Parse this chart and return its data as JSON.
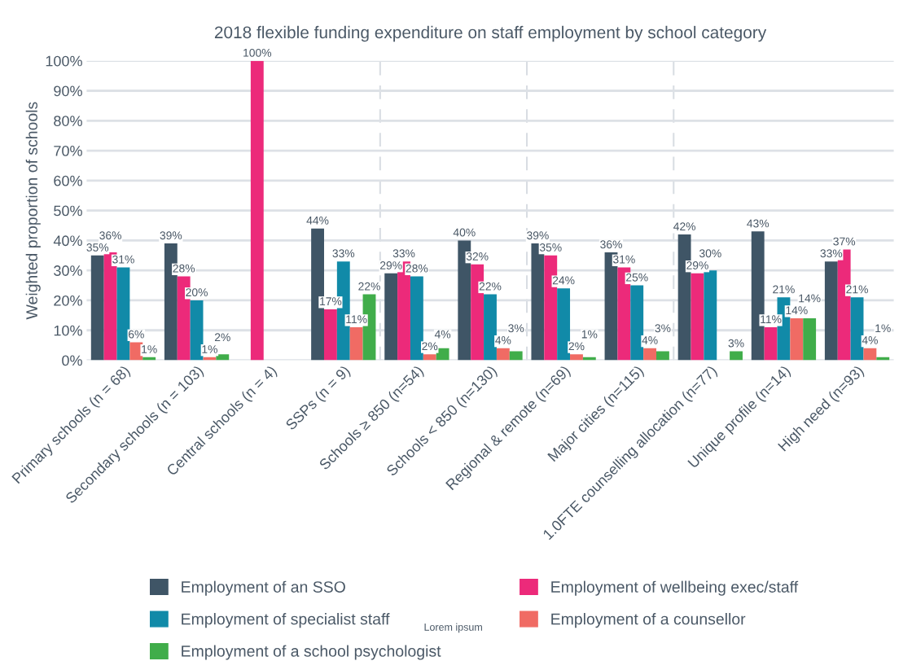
{
  "chart_data": {
    "type": "bar",
    "title": "2018 flexible funding expenditure on staff employment by school category",
    "ylabel": "Weighted proportion of schools",
    "categories": [
      "Primary schools (n = 68)",
      "Secondary schools (n = 103)",
      "Central schools (n = 4)",
      "SSPs (n = 9)",
      "Schools ≥ 850 (n=54)",
      "Schools < 850 (n=130)",
      "Regional & remote (n=69)",
      "Major cities (n=115)",
      "1.0FTE counselling allocation (n=77)",
      "Unique profile (n=14)",
      "High need (n=93)"
    ],
    "series": [
      {
        "name": "Employment of an SSO",
        "color": "#3f5566",
        "values": [
          35,
          39,
          null,
          44,
          29,
          40,
          39,
          36,
          42,
          43,
          33
        ],
        "value_labels": [
          "35%",
          "39%",
          null,
          "44%",
          "29%",
          "40%",
          "39%",
          "36%",
          "42%",
          "43%",
          "33%"
        ]
      },
      {
        "name": "Employment of wellbeing exec/staff",
        "color": "#ec2a7a",
        "values": [
          36,
          28,
          100,
          17,
          33,
          32,
          35,
          31,
          29,
          11,
          37
        ],
        "value_labels": [
          "36%",
          "28%",
          "100%",
          "17%",
          "33%",
          "32%",
          "35%",
          "31%",
          "29%",
          "11%",
          "37%"
        ]
      },
      {
        "name": "Employment of specialist staff",
        "color": "#118aa8",
        "values": [
          31,
          20,
          null,
          33,
          28,
          22,
          24,
          25,
          30,
          21,
          21
        ],
        "value_labels": [
          "31%",
          "20%",
          null,
          "33%",
          "28%",
          "22%",
          "24%",
          "25%",
          "30%",
          "21%",
          "21%"
        ]
      },
      {
        "name": "Employment of a counsellor",
        "color": "#f06b64",
        "values": [
          6,
          1,
          null,
          11,
          2,
          4,
          2,
          4,
          null,
          14,
          4
        ],
        "value_labels": [
          "6%",
          "1%",
          null,
          "11%",
          "2%",
          "4%",
          "2%",
          "4%",
          null,
          "14%",
          "4%"
        ]
      },
      {
        "name": "Employment of a school psychologist",
        "color": "#40ad4a",
        "values": [
          1,
          2,
          null,
          22,
          4,
          3,
          1,
          3,
          3,
          14,
          1
        ],
        "value_labels": [
          "1%",
          "2%",
          null,
          "22%",
          "4%",
          "3%",
          "1%",
          "3%",
          "3%",
          "14%",
          "1%"
        ]
      }
    ],
    "ylim": [
      0,
      100
    ],
    "yticks": [
      {
        "value": 0,
        "label": "0%"
      },
      {
        "value": 10,
        "label": "10%"
      },
      {
        "value": 20,
        "label": "20%"
      },
      {
        "value": 30,
        "label": "30%"
      },
      {
        "value": 40,
        "label": "40%"
      },
      {
        "value": 50,
        "label": "50%"
      },
      {
        "value": 60,
        "label": "60%"
      },
      {
        "value": 70,
        "label": "70%"
      },
      {
        "value": 80,
        "label": "80%"
      },
      {
        "value": 90,
        "label": "90%"
      },
      {
        "value": 100,
        "label": "100%"
      }
    ],
    "grid": "y",
    "legend": "bottom",
    "annotations": [
      "Lorem ipsum"
    ]
  }
}
